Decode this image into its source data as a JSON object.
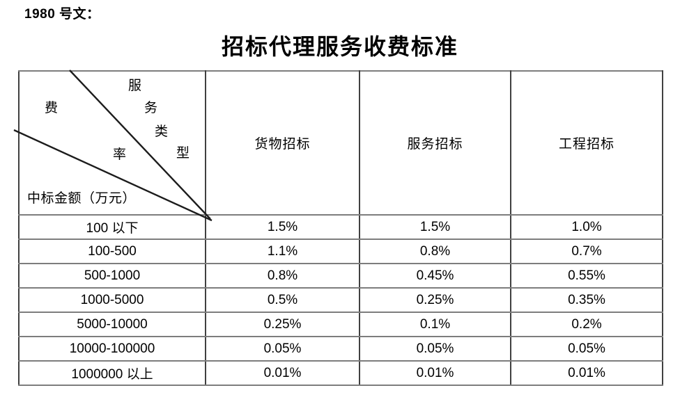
{
  "page": {
    "ref_label": "1980 号文：",
    "title": "招标代理服务收费标准"
  },
  "table": {
    "corner": {
      "type_axis_chars": [
        "服",
        "务",
        "类",
        "型"
      ],
      "rate_axis_chars": [
        "费",
        "率"
      ],
      "row_axis_label": "中标金额（万元）"
    },
    "columns": [
      "货物招标",
      "服务招标",
      "工程招标"
    ],
    "rows": [
      {
        "label": "100 以下",
        "values": [
          "1.5%",
          "1.5%",
          "1.0%"
        ]
      },
      {
        "label": "100-500",
        "values": [
          "1.1%",
          "0.8%",
          "0.7%"
        ]
      },
      {
        "label": "500-1000",
        "values": [
          "0.8%",
          "0.45%",
          "0.55%"
        ]
      },
      {
        "label": "1000-5000",
        "values": [
          "0.5%",
          "0.25%",
          "0.35%"
        ]
      },
      {
        "label": "5000-10000",
        "values": [
          "0.25%",
          "0.1%",
          "0.2%"
        ]
      },
      {
        "label": "10000-100000",
        "values": [
          "0.05%",
          "0.05%",
          "0.05%"
        ]
      },
      {
        "label": "1000000 以上",
        "values": [
          "0.01%",
          "0.01%",
          "0.01%"
        ]
      }
    ]
  },
  "colors": {
    "text": "#000000",
    "grid_vertical": "#404040",
    "grid_horizontal": "#7d7d7d",
    "diagonal_line": "#1c1c1c",
    "background": "#ffffff"
  }
}
